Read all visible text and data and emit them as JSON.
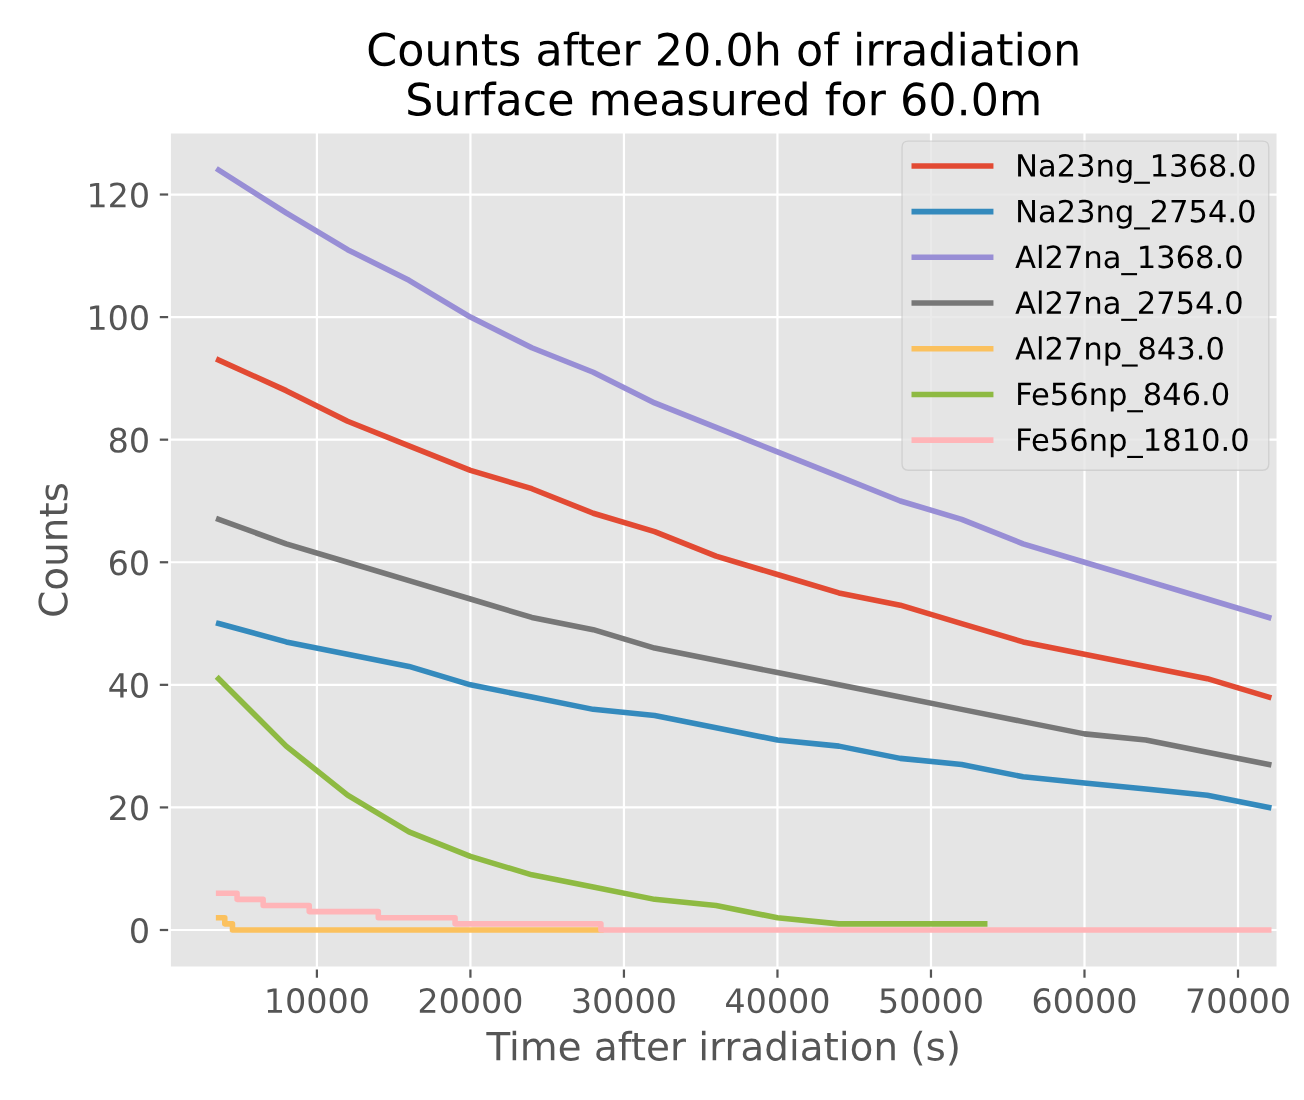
{
  "chart_data": {
    "type": "line",
    "title": "Counts after 20.0h of irradiation\nSurface measured for 60.0m",
    "xlabel": "Time after irradiation (s)",
    "ylabel": "Counts",
    "x": [
      3600,
      8000,
      12000,
      16000,
      20000,
      24000,
      28000,
      32000,
      36000,
      40000,
      44000,
      48000,
      52000,
      56000,
      60000,
      64000,
      68000,
      72000
    ],
    "series": [
      {
        "name": "Na23ng_1368.0",
        "color": "#e24a33",
        "values": [
          93,
          88,
          83,
          79,
          75,
          72,
          68,
          65,
          61,
          58,
          55,
          53,
          50,
          47,
          45,
          43,
          41,
          38
        ]
      },
      {
        "name": "Na23ng_2754.0",
        "color": "#348abd",
        "values": [
          50,
          47,
          45,
          43,
          40,
          38,
          36,
          35,
          33,
          31,
          30,
          28,
          27,
          25,
          24,
          23,
          22,
          20
        ]
      },
      {
        "name": "Al27na_1368.0",
        "color": "#988ed5",
        "values": [
          124,
          117,
          111,
          106,
          100,
          95,
          91,
          86,
          82,
          78,
          74,
          70,
          67,
          63,
          60,
          57,
          54,
          51
        ]
      },
      {
        "name": "Al27na_2754.0",
        "color": "#777777",
        "values": [
          67,
          63,
          60,
          57,
          54,
          51,
          49,
          46,
          44,
          42,
          40,
          38,
          36,
          34,
          32,
          31,
          29,
          27
        ]
      },
      {
        "name": "Al27np_843.0",
        "color": "#fbc15e",
        "type": "step",
        "x": [
          3600,
          4000,
          4500,
          28500
        ],
        "values": [
          2,
          1,
          0,
          0
        ]
      },
      {
        "name": "Fe56np_846.0",
        "color": "#8eba42",
        "x": [
          3600,
          8000,
          12000,
          16000,
          20000,
          24000,
          28000,
          32000,
          36000,
          40000,
          44000,
          48000,
          52000,
          53500
        ],
        "values": [
          41,
          30,
          22,
          16,
          12,
          9,
          7,
          5,
          4,
          2,
          1,
          1,
          1,
          1
        ]
      },
      {
        "name": "Fe56np_1810.0",
        "color": "#ffb5b8",
        "type": "step",
        "x": [
          3600,
          4800,
          6500,
          9500,
          14000,
          19000,
          28500,
          72000
        ],
        "values": [
          6,
          5,
          4,
          3,
          2,
          1,
          0,
          0
        ]
      }
    ],
    "xlim": [
      400,
      72600
    ],
    "ylim": [
      -6.2,
      130.2
    ],
    "xticks": [
      10000,
      20000,
      30000,
      40000,
      50000,
      60000,
      70000
    ],
    "yticks": [
      0,
      20,
      40,
      60,
      80,
      100,
      120
    ],
    "grid": true,
    "legend": "upper right"
  }
}
